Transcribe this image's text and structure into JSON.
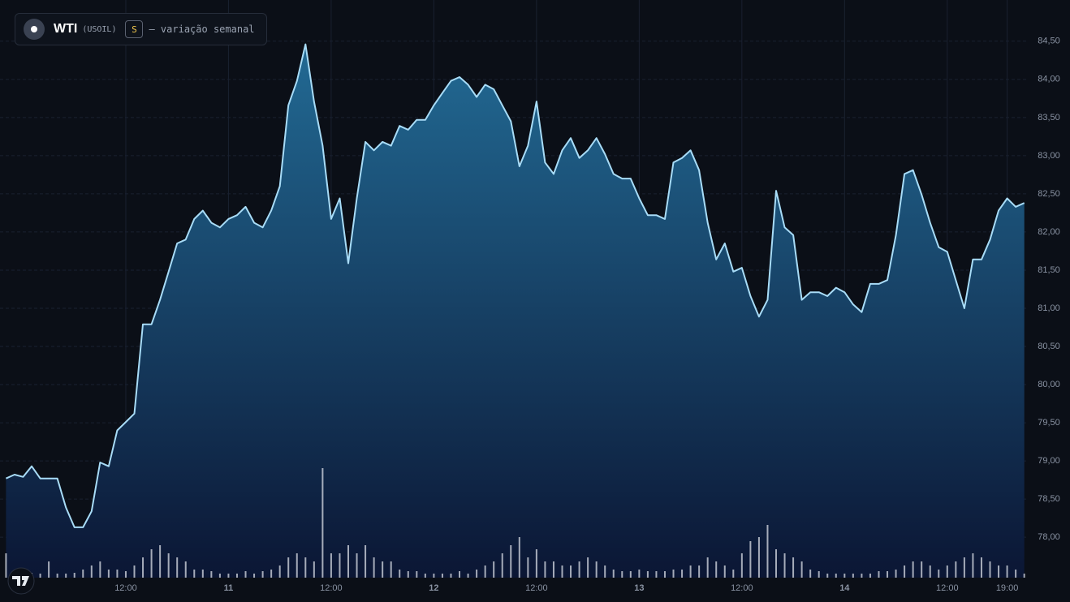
{
  "chart_data": {
    "type": "area",
    "title": "WTI",
    "subtitle": "(USOIL)",
    "badge": "S",
    "caption": "— variação semanal",
    "categories": [
      null,
      null,
      null,
      null,
      null,
      null,
      null,
      null,
      null,
      null,
      null,
      null,
      null,
      null,
      "12:00",
      null,
      null,
      null,
      null,
      null,
      null,
      null,
      null,
      null,
      null,
      null,
      "11",
      null,
      null,
      null,
      null,
      null,
      null,
      null,
      null,
      null,
      null,
      null,
      "12:00",
      null,
      null,
      null,
      null,
      null,
      null,
      null,
      null,
      null,
      null,
      null,
      "12",
      null,
      null,
      null,
      null,
      null,
      null,
      null,
      null,
      null,
      null,
      null,
      "12:00",
      null,
      null,
      null,
      null,
      null,
      null,
      null,
      null,
      null,
      null,
      null,
      "13",
      null,
      null,
      null,
      null,
      null,
      null,
      null,
      null,
      null,
      null,
      null,
      "12:00",
      null,
      null,
      null,
      null,
      null,
      null,
      null,
      null,
      null,
      null,
      null,
      "14",
      null,
      null,
      null,
      null,
      null,
      null,
      null,
      null,
      null,
      null,
      null,
      "12:00",
      null,
      null,
      null,
      null,
      null,
      null,
      "19:00",
      null,
      null
    ],
    "values": [
      78.77,
      78.82,
      78.79,
      78.93,
      78.77,
      78.77,
      78.77,
      78.39,
      78.13,
      78.13,
      78.34,
      78.98,
      78.93,
      79.4,
      79.51,
      79.62,
      80.79,
      80.79,
      81.11,
      81.48,
      81.85,
      81.9,
      82.17,
      82.28,
      82.12,
      82.06,
      82.17,
      82.22,
      82.33,
      82.12,
      82.06,
      82.28,
      82.6,
      83.66,
      83.98,
      84.46,
      83.71,
      83.13,
      82.17,
      82.44,
      81.59,
      82.44,
      83.18,
      83.07,
      83.18,
      83.13,
      83.39,
      83.34,
      83.47,
      83.47,
      83.66,
      83.82,
      83.98,
      84.03,
      83.93,
      83.77,
      83.93,
      83.87,
      83.66,
      83.45,
      82.86,
      83.13,
      83.71,
      82.91,
      82.76,
      83.07,
      83.23,
      82.97,
      83.07,
      83.23,
      83.02,
      82.76,
      82.7,
      82.7,
      82.44,
      82.22,
      82.22,
      82.17,
      82.91,
      82.97,
      83.07,
      82.81,
      82.12,
      81.64,
      81.85,
      81.48,
      81.53,
      81.16,
      80.89,
      81.11,
      82.54,
      82.06,
      81.96,
      81.11,
      81.21,
      81.21,
      81.16,
      81.27,
      81.21,
      81.05,
      80.95,
      81.32,
      81.32,
      81.37,
      81.96,
      82.76,
      82.81,
      82.49,
      82.12,
      81.8,
      81.74,
      81.37,
      81.0,
      81.64,
      81.64,
      81.9,
      82.28,
      82.44,
      82.33,
      82.38
    ],
    "color": "#a8dcf7",
    "volume": {
      "axis": "y2",
      "color": "#d9dee6",
      "values": [
        30,
        10,
        6,
        6,
        5,
        20,
        5,
        5,
        6,
        10,
        15,
        20,
        10,
        10,
        8,
        15,
        25,
        35,
        40,
        30,
        25,
        20,
        10,
        10,
        8,
        5,
        5,
        5,
        8,
        5,
        8,
        10,
        15,
        25,
        30,
        25,
        20,
        135,
        30,
        30,
        40,
        30,
        40,
        25,
        20,
        20,
        10,
        8,
        8,
        5,
        5,
        5,
        5,
        8,
        5,
        10,
        15,
        20,
        30,
        40,
        50,
        25,
        35,
        20,
        20,
        15,
        15,
        20,
        25,
        20,
        15,
        10,
        8,
        8,
        10,
        8,
        8,
        8,
        10,
        10,
        15,
        15,
        25,
        20,
        15,
        10,
        30,
        45,
        50,
        65,
        35,
        30,
        25,
        20,
        10,
        8,
        5,
        5,
        5,
        5,
        5,
        5,
        8,
        8,
        10,
        15,
        20,
        20,
        15,
        10,
        15,
        20,
        25,
        30,
        25,
        20,
        15,
        15,
        10,
        5
      ]
    },
    "ylim": [
      77.47,
      85.04
    ],
    "yticks": [
      {
        "value": 78,
        "label": "78,00"
      },
      {
        "value": 78.5,
        "label": "78,50"
      },
      {
        "value": 79,
        "label": "79,00"
      },
      {
        "value": 79.5,
        "label": "79,50"
      },
      {
        "value": 80,
        "label": "80,00"
      },
      {
        "value": 80.5,
        "label": "80,50"
      },
      {
        "value": 81,
        "label": "81,00"
      },
      {
        "value": 81.5,
        "label": "81,50"
      },
      {
        "value": 82,
        "label": "82,00"
      },
      {
        "value": 82.5,
        "label": "82,50"
      },
      {
        "value": 83,
        "label": "83,00"
      },
      {
        "value": 83.5,
        "label": "83,50"
      },
      {
        "value": 84,
        "label": "84,00"
      },
      {
        "value": 84.5,
        "label": "84,50"
      }
    ],
    "y2lim": [
      0,
      150
    ],
    "grid": true
  }
}
